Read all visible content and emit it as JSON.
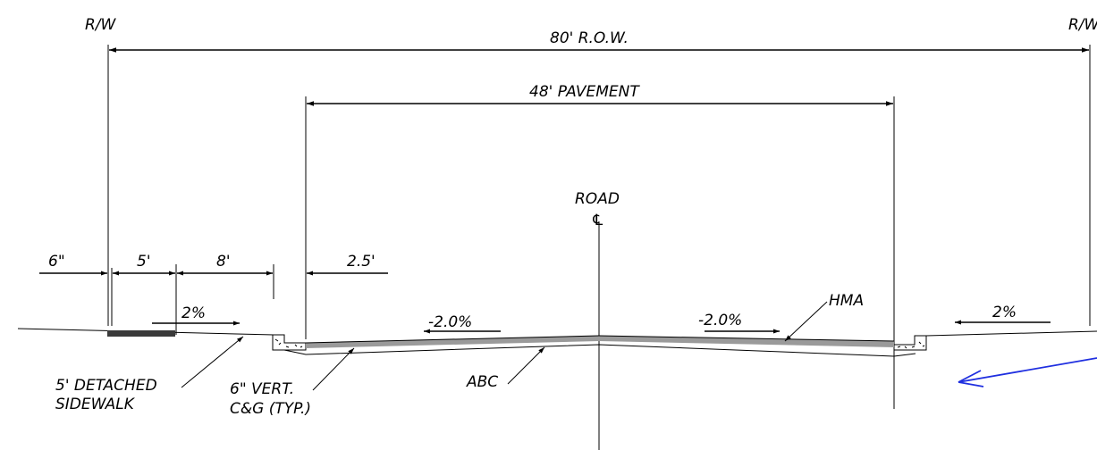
{
  "labels": {
    "rw_left": "R/W",
    "rw_right": "R/W",
    "row_width": "80' R.O.W.",
    "pavement_width": "48' PAVEMENT",
    "road": "ROAD",
    "centerline_symbol": "℄",
    "dim_6in": "6\"",
    "dim_5ft": "5'",
    "dim_8ft": "8'",
    "dim_2_5ft": "2.5'",
    "slope_left_shoulder": "2%",
    "slope_right_shoulder": "2%",
    "slope_left_lane": "-2.0%",
    "slope_right_lane": "-2.0%",
    "hma": "HMA",
    "abc": "ABC",
    "sidewalk_line1": "5' DETACHED",
    "sidewalk_line2": "SIDEWALK",
    "curb_line1": "6\" VERT.",
    "curb_line2": "C&G (TYP.)"
  },
  "colors": {
    "linework": "#000000",
    "pavement_fill": "#9a9a9a",
    "sidewalk_fill": "#3a3a3a",
    "markup_arrow": "#1f2fe0"
  }
}
